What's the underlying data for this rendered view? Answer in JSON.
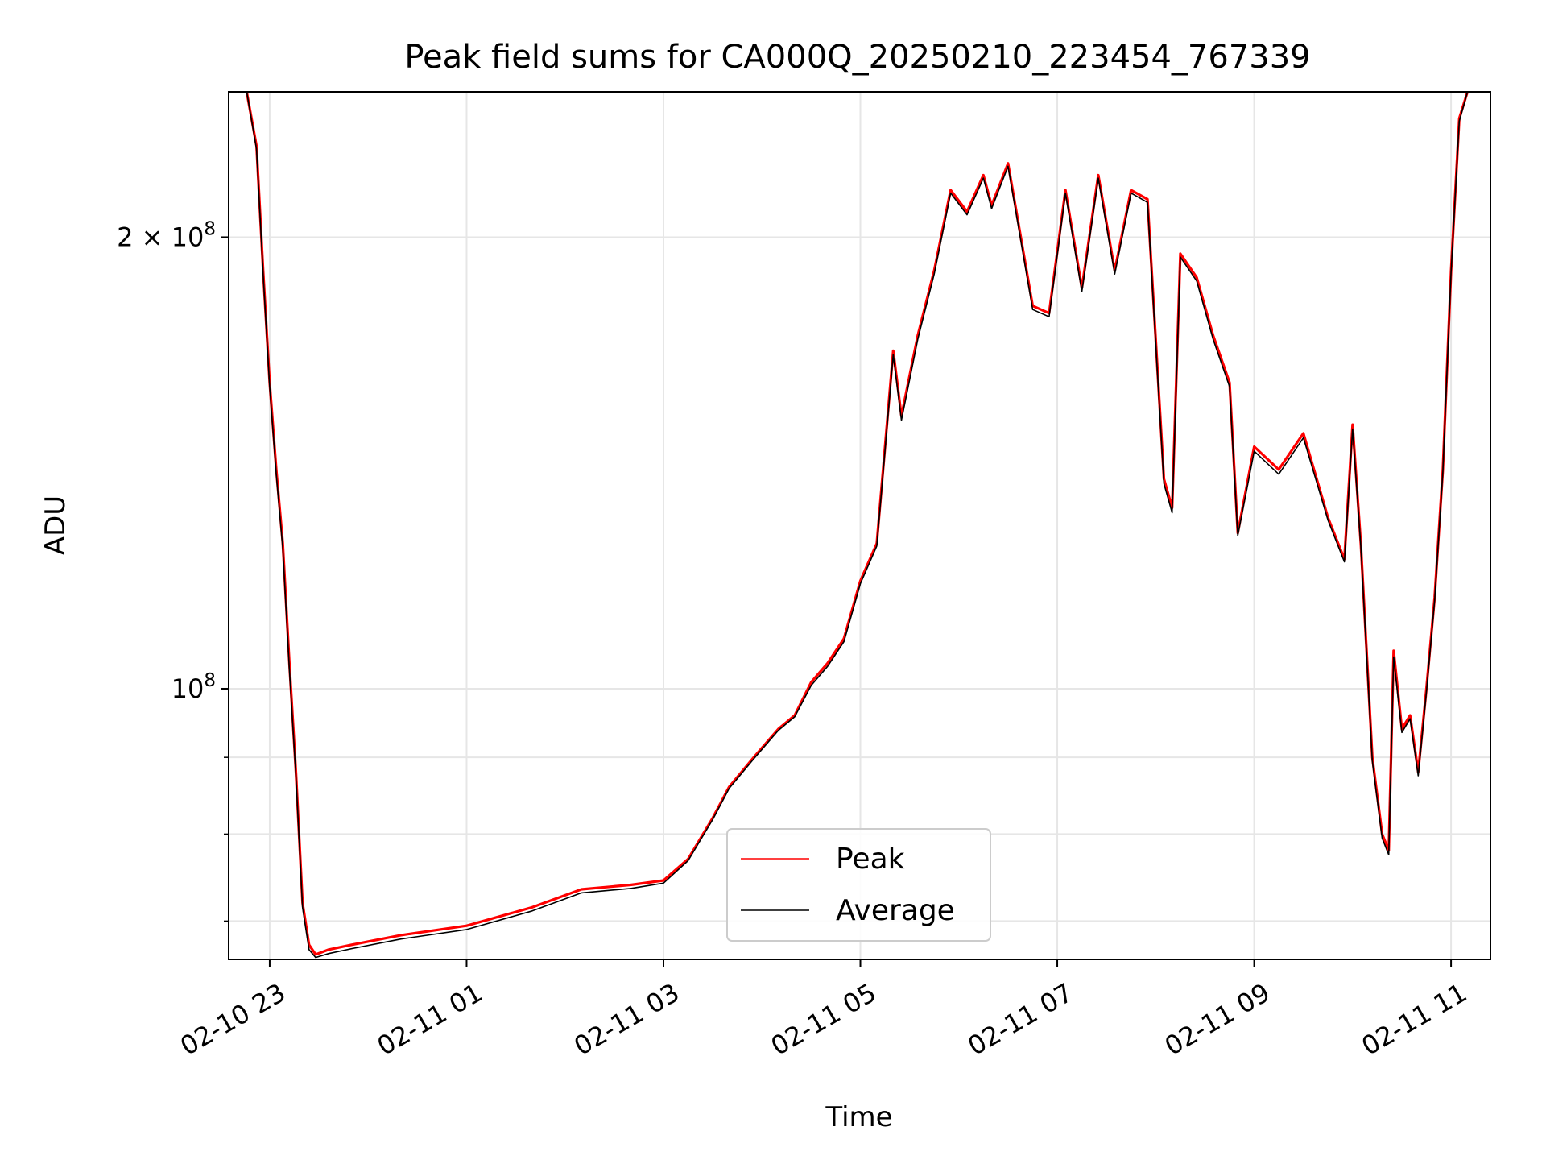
{
  "chart_data": {
    "type": "line",
    "title": "Peak field sums for CA000Q_20250210_223454_767339",
    "xlabel": "Time",
    "ylabel": "ADU",
    "yscale": "log",
    "grid": true,
    "legend_position": "lower-center",
    "xlim": [
      "2025-02-10T22:35",
      "2025-02-11T11:24"
    ],
    "ylim": [
      66000000,
      250000000
    ],
    "x_ticks": [
      {
        "label": "02-10 23",
        "t": "2025-02-10T23:00"
      },
      {
        "label": "02-11 01",
        "t": "2025-02-11T01:00"
      },
      {
        "label": "02-11 03",
        "t": "2025-02-11T03:00"
      },
      {
        "label": "02-11 05",
        "t": "2025-02-11T05:00"
      },
      {
        "label": "02-11 07",
        "t": "2025-02-11T07:00"
      },
      {
        "label": "02-11 09",
        "t": "2025-02-11T09:00"
      },
      {
        "label": "02-11 11",
        "t": "2025-02-11T11:00"
      }
    ],
    "y_ticks_major": [
      {
        "label": "10",
        "exp": "8",
        "value": 100000000
      },
      {
        "label": "2 × 10",
        "exp": "8",
        "value": 200000000
      }
    ],
    "y_ticks_minor": [
      70000000,
      80000000,
      90000000
    ],
    "series": [
      {
        "name": "Peak",
        "color": "#ff0000",
        "x": [
          "2025-02-10T22:46",
          "2025-02-10T22:52",
          "2025-02-10T22:56",
          "2025-02-10T23:00",
          "2025-02-10T23:04",
          "2025-02-10T23:08",
          "2025-02-10T23:12",
          "2025-02-10T23:16",
          "2025-02-10T23:20",
          "2025-02-10T23:24",
          "2025-02-10T23:28",
          "2025-02-10T23:36",
          "2025-02-10T23:50",
          "2025-02-11T00:20",
          "2025-02-11T01:00",
          "2025-02-11T01:40",
          "2025-02-11T02:10",
          "2025-02-11T02:40",
          "2025-02-11T03:00",
          "2025-02-11T03:15",
          "2025-02-11T03:30",
          "2025-02-11T03:40",
          "2025-02-11T03:55",
          "2025-02-11T04:10",
          "2025-02-11T04:20",
          "2025-02-11T04:30",
          "2025-02-11T04:40",
          "2025-02-11T04:50",
          "2025-02-11T05:00",
          "2025-02-11T05:10",
          "2025-02-11T05:20",
          "2025-02-11T05:25",
          "2025-02-11T05:35",
          "2025-02-11T05:45",
          "2025-02-11T05:55",
          "2025-02-11T06:05",
          "2025-02-11T06:15",
          "2025-02-11T06:20",
          "2025-02-11T06:30",
          "2025-02-11T06:45",
          "2025-02-11T06:55",
          "2025-02-11T07:05",
          "2025-02-11T07:15",
          "2025-02-11T07:25",
          "2025-02-11T07:35",
          "2025-02-11T07:45",
          "2025-02-11T07:55",
          "2025-02-11T08:05",
          "2025-02-11T08:10",
          "2025-02-11T08:15",
          "2025-02-11T08:25",
          "2025-02-11T08:35",
          "2025-02-11T08:45",
          "2025-02-11T08:50",
          "2025-02-11T09:00",
          "2025-02-11T09:15",
          "2025-02-11T09:30",
          "2025-02-11T09:45",
          "2025-02-11T09:55",
          "2025-02-11T10:00",
          "2025-02-11T10:05",
          "2025-02-11T10:12",
          "2025-02-11T10:18",
          "2025-02-11T10:22",
          "2025-02-11T10:25",
          "2025-02-11T10:30",
          "2025-02-11T10:35",
          "2025-02-11T10:40",
          "2025-02-11T10:45",
          "2025-02-11T10:50",
          "2025-02-11T10:55",
          "2025-02-11T11:00",
          "2025-02-11T11:05",
          "2025-02-11T11:10"
        ],
        "y": [
          250000000,
          230000000,
          190000000,
          160000000,
          140000000,
          125000000,
          104000000,
          88000000,
          72000000,
          67500000,
          66500000,
          67000000,
          67500000,
          68500000,
          69500000,
          71500000,
          73500000,
          74000000,
          74500000,
          77000000,
          82000000,
          86000000,
          90000000,
          94000000,
          96000000,
          101000000,
          104000000,
          108000000,
          118000000,
          125000000,
          168000000,
          152000000,
          172000000,
          190000000,
          215000000,
          208000000,
          220000000,
          210000000,
          224000000,
          180000000,
          178000000,
          215000000,
          185000000,
          220000000,
          190000000,
          215000000,
          212000000,
          138000000,
          132000000,
          195000000,
          188000000,
          172000000,
          160000000,
          127000000,
          145000000,
          140000000,
          148000000,
          130000000,
          122000000,
          150000000,
          125000000,
          90000000,
          80000000,
          78000000,
          106000000,
          94000000,
          96000000,
          88000000,
          100000000,
          115000000,
          140000000,
          190000000,
          240000000,
          250000000
        ]
      },
      {
        "name": "Average",
        "color": "#000000",
        "x": [
          "2025-02-10T22:46",
          "2025-02-10T22:52",
          "2025-02-10T22:56",
          "2025-02-10T23:00",
          "2025-02-10T23:04",
          "2025-02-10T23:08",
          "2025-02-10T23:12",
          "2025-02-10T23:16",
          "2025-02-10T23:20",
          "2025-02-10T23:24",
          "2025-02-10T23:28",
          "2025-02-10T23:36",
          "2025-02-10T23:50",
          "2025-02-11T00:20",
          "2025-02-11T01:00",
          "2025-02-11T01:40",
          "2025-02-11T02:10",
          "2025-02-11T02:40",
          "2025-02-11T03:00",
          "2025-02-11T03:15",
          "2025-02-11T03:30",
          "2025-02-11T03:40",
          "2025-02-11T03:55",
          "2025-02-11T04:10",
          "2025-02-11T04:20",
          "2025-02-11T04:30",
          "2025-02-11T04:40",
          "2025-02-11T04:50",
          "2025-02-11T05:00",
          "2025-02-11T05:10",
          "2025-02-11T05:20",
          "2025-02-11T05:25",
          "2025-02-11T05:35",
          "2025-02-11T05:45",
          "2025-02-11T05:55",
          "2025-02-11T06:05",
          "2025-02-11T06:15",
          "2025-02-11T06:20",
          "2025-02-11T06:30",
          "2025-02-11T06:45",
          "2025-02-11T06:55",
          "2025-02-11T07:05",
          "2025-02-11T07:15",
          "2025-02-11T07:25",
          "2025-02-11T07:35",
          "2025-02-11T07:45",
          "2025-02-11T07:55",
          "2025-02-11T08:05",
          "2025-02-11T08:10",
          "2025-02-11T08:15",
          "2025-02-11T08:25",
          "2025-02-11T08:35",
          "2025-02-11T08:45",
          "2025-02-11T08:50",
          "2025-02-11T09:00",
          "2025-02-11T09:15",
          "2025-02-11T09:30",
          "2025-02-11T09:45",
          "2025-02-11T09:55",
          "2025-02-11T10:00",
          "2025-02-11T10:05",
          "2025-02-11T10:12",
          "2025-02-11T10:18",
          "2025-02-11T10:22",
          "2025-02-11T10:25",
          "2025-02-11T10:30",
          "2025-02-11T10:35",
          "2025-02-11T10:40",
          "2025-02-11T10:45",
          "2025-02-11T10:50",
          "2025-02-11T10:55",
          "2025-02-11T11:00",
          "2025-02-11T11:05",
          "2025-02-11T11:10"
        ],
        "y": [
          250000000,
          229000000,
          189000000,
          159000000,
          139000000,
          124000000,
          103000000,
          87500000,
          71500000,
          67000000,
          66200000,
          66600000,
          67100000,
          68100000,
          69100000,
          71100000,
          73100000,
          73600000,
          74200000,
          76800000,
          81800000,
          85800000,
          89800000,
          93800000,
          95800000,
          100500000,
          103500000,
          107500000,
          117500000,
          124500000,
          167000000,
          151000000,
          171000000,
          189000000,
          214000000,
          207000000,
          219000000,
          209000000,
          223000000,
          179000000,
          177000000,
          214000000,
          184000000,
          219000000,
          189000000,
          214000000,
          211000000,
          137000000,
          131000000,
          194000000,
          187000000,
          171000000,
          159000000,
          126500000,
          144000000,
          139000000,
          147000000,
          129500000,
          121500000,
          149000000,
          124500000,
          89500000,
          79500000,
          77500000,
          105000000,
          93500000,
          95500000,
          87500000,
          99500000,
          114500000,
          139500000,
          189500000,
          239000000,
          250000000
        ]
      }
    ]
  }
}
